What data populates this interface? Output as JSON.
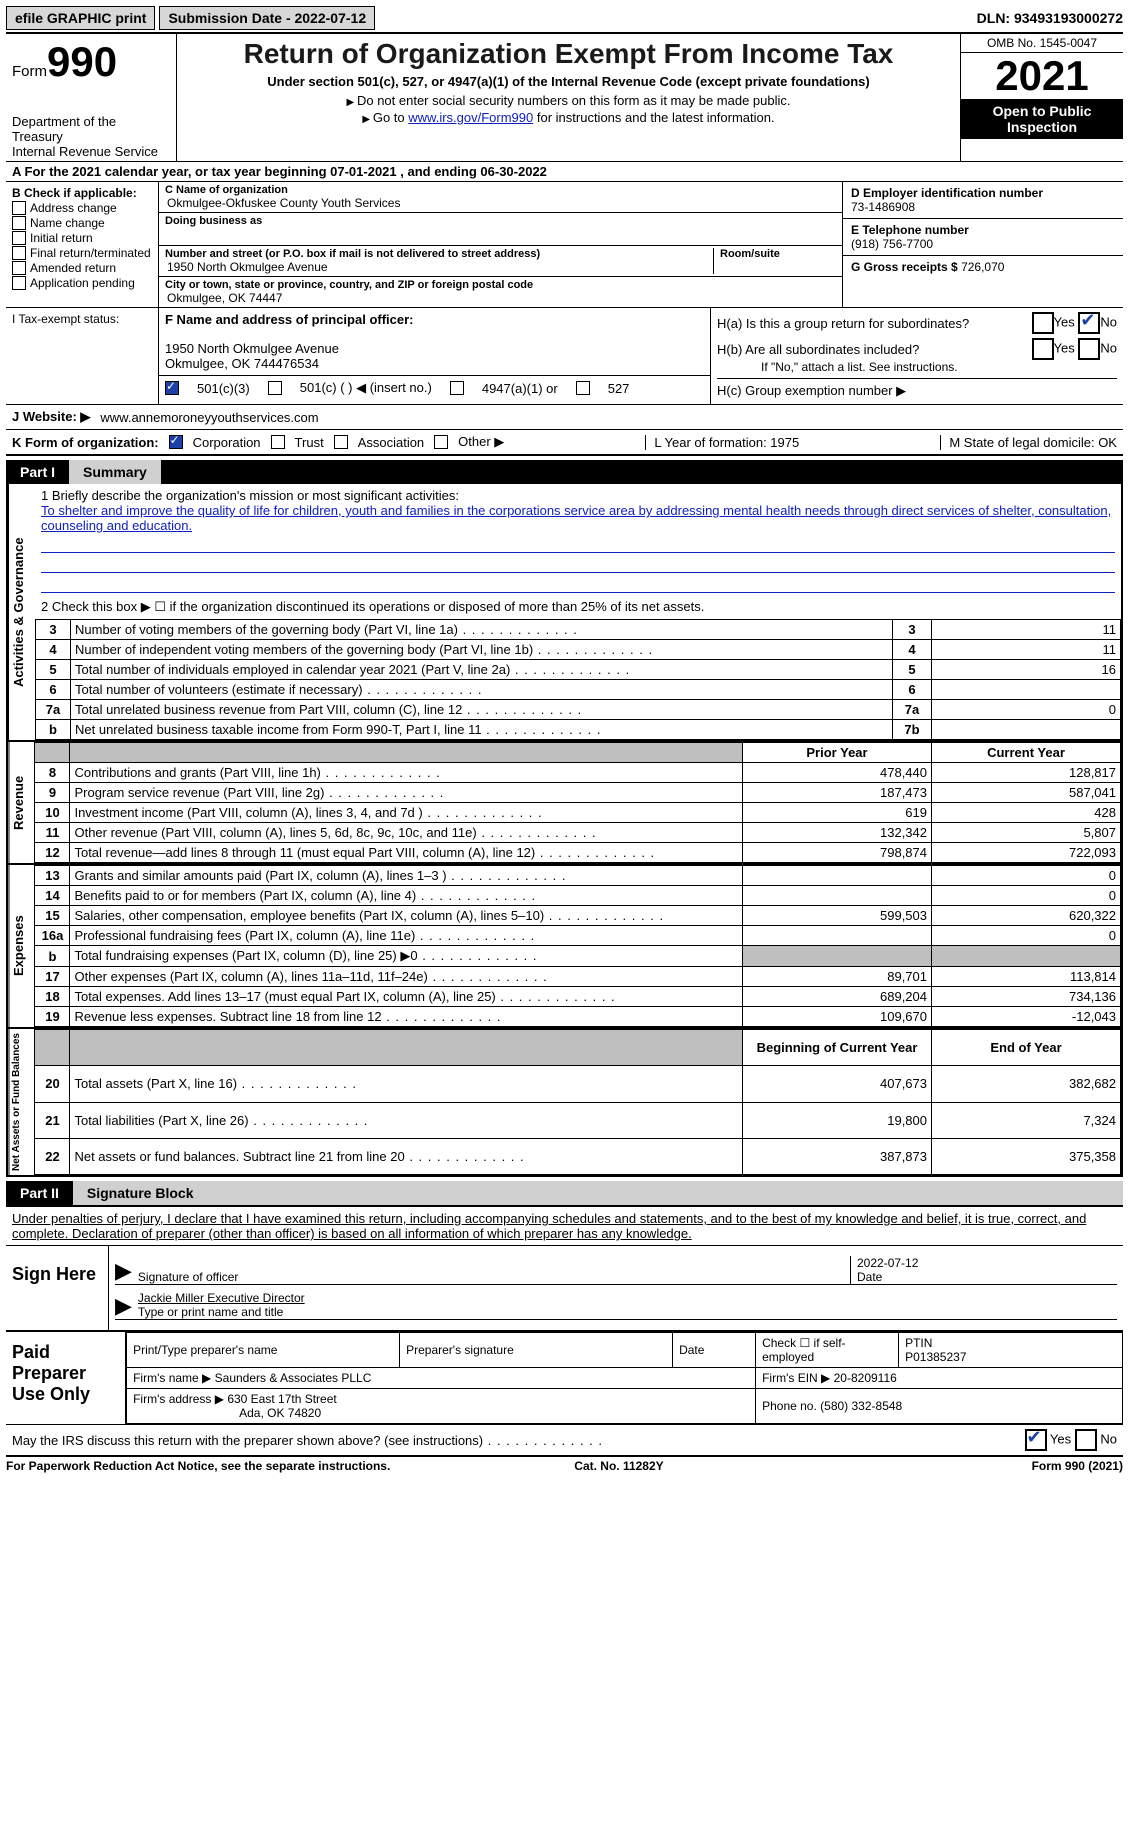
{
  "topbar": {
    "print_label": "efile GRAPHIC print",
    "submission_label": "Submission Date - 2022-07-12",
    "dln": "DLN: 93493193000272"
  },
  "header": {
    "form_prefix": "Form",
    "form_number": "990",
    "dept": "Department of the Treasury",
    "irs": "Internal Revenue Service",
    "title": "Return of Organization Exempt From Income Tax",
    "sub": "Under section 501(c), 527, or 4947(a)(1) of the Internal Revenue Code (except private foundations)",
    "note1": "Do not enter social security numbers on this form as it may be made public.",
    "note2_prefix": "Go to ",
    "link": "www.irs.gov/Form990",
    "note2_suffix": " for instructions and the latest information.",
    "omb": "OMB No. 1545-0047",
    "year": "2021",
    "open": "Open to Public Inspection"
  },
  "period": {
    "text": "A For the 2021 calendar year, or tax year beginning 07-01-2021    , and ending 06-30-2022"
  },
  "sectionB": {
    "header": "B Check if applicable:",
    "opts": [
      "Address change",
      "Name change",
      "Initial return",
      "Final return/terminated",
      "Amended return",
      "Application pending"
    ]
  },
  "sectionC": {
    "name_lab": "C Name of organization",
    "name": "Okmulgee-Okfuskee County Youth Services",
    "dba_lab": "Doing business as",
    "addr_lab": "Number and street (or P.O. box if mail is not delivered to street address)",
    "room_lab": "Room/suite",
    "addr": "1950 North Okmulgee Avenue",
    "city_lab": "City or town, state or province, country, and ZIP or foreign postal code",
    "city": "Okmulgee, OK  74447"
  },
  "sectionD": {
    "lab": "D Employer identification number",
    "val": "73-1486908"
  },
  "sectionE": {
    "lab": "E Telephone number",
    "val": "(918) 756-7700"
  },
  "sectionG": {
    "lab": "G Gross receipts $",
    "val": "726,070"
  },
  "sectionF": {
    "lab": "F Name and address of principal officer:",
    "addr1": "1950 North Okmulgee Avenue",
    "addr2": "Okmulgee, OK  744476534"
  },
  "sectionH": {
    "a": "H(a)  Is this a group return for subordinates?",
    "b": "H(b)  Are all subordinates included?",
    "bnote": "If \"No,\" attach a list. See instructions.",
    "c": "H(c)  Group exemption number ▶",
    "yes": "Yes",
    "no": "No"
  },
  "status": {
    "lab": "I   Tax-exempt status:",
    "o1": "501(c)(3)",
    "o2": "501(c) (   ) ◀ (insert no.)",
    "o3": "4947(a)(1) or",
    "o4": "527"
  },
  "website": {
    "lab": "J   Website: ▶",
    "val": "www.annemoroneyyouthservices.com"
  },
  "korg": {
    "lab": "K Form of organization:",
    "o1": "Corporation",
    "o2": "Trust",
    "o3": "Association",
    "o4": "Other ▶",
    "L": "L Year of formation: 1975",
    "M": "M State of legal domicile: OK"
  },
  "part1": {
    "num": "Part I",
    "title": "Summary"
  },
  "summary": {
    "q1_lab": "1   Briefly describe the organization's mission or most significant activities:",
    "mission": "To shelter and improve the quality of life for children, youth and families in the corporations service area by addressing mental health needs through direct services of shelter, consultation, counseling and education.",
    "q2": "2    Check this box ▶ ☐  if the organization discontinued its operations or disposed of more than 25% of its net assets.",
    "vlab_ag": "Activities & Governance",
    "vlab_rev": "Revenue",
    "vlab_exp": "Expenses",
    "vlab_na": "Net Assets or Fund Balances",
    "rows_top": [
      {
        "n": "3",
        "t": "Number of voting members of the governing body (Part VI, line 1a)",
        "b": "3",
        "v": "11"
      },
      {
        "n": "4",
        "t": "Number of independent voting members of the governing body (Part VI, line 1b)",
        "b": "4",
        "v": "11"
      },
      {
        "n": "5",
        "t": "Total number of individuals employed in calendar year 2021 (Part V, line 2a)",
        "b": "5",
        "v": "16"
      },
      {
        "n": "6",
        "t": "Total number of volunteers (estimate if necessary)",
        "b": "6",
        "v": ""
      },
      {
        "n": "7a",
        "t": "Total unrelated business revenue from Part VIII, column (C), line 12",
        "b": "7a",
        "v": "0"
      },
      {
        "n": "b",
        "t": "Net unrelated business taxable income from Form 990-T, Part I, line 11",
        "b": "7b",
        "v": ""
      }
    ],
    "col_prior": "Prior Year",
    "col_current": "Current Year",
    "rows_rev": [
      {
        "n": "8",
        "t": "Contributions and grants (Part VIII, line 1h)",
        "p": "478,440",
        "c": "128,817"
      },
      {
        "n": "9",
        "t": "Program service revenue (Part VIII, line 2g)",
        "p": "187,473",
        "c": "587,041"
      },
      {
        "n": "10",
        "t": "Investment income (Part VIII, column (A), lines 3, 4, and 7d )",
        "p": "619",
        "c": "428"
      },
      {
        "n": "11",
        "t": "Other revenue (Part VIII, column (A), lines 5, 6d, 8c, 9c, 10c, and 11e)",
        "p": "132,342",
        "c": "5,807"
      },
      {
        "n": "12",
        "t": "Total revenue—add lines 8 through 11 (must equal Part VIII, column (A), line 12)",
        "p": "798,874",
        "c": "722,093"
      }
    ],
    "rows_exp": [
      {
        "n": "13",
        "t": "Grants and similar amounts paid (Part IX, column (A), lines 1–3 )",
        "p": "",
        "c": "0"
      },
      {
        "n": "14",
        "t": "Benefits paid to or for members (Part IX, column (A), line 4)",
        "p": "",
        "c": "0"
      },
      {
        "n": "15",
        "t": "Salaries, other compensation, employee benefits (Part IX, column (A), lines 5–10)",
        "p": "599,503",
        "c": "620,322"
      },
      {
        "n": "16a",
        "t": "Professional fundraising fees (Part IX, column (A), line 11e)",
        "p": "",
        "c": "0"
      },
      {
        "n": "b",
        "t": "Total fundraising expenses (Part IX, column (D), line 25) ▶0",
        "p": "shade",
        "c": "shade"
      },
      {
        "n": "17",
        "t": "Other expenses (Part IX, column (A), lines 11a–11d, 11f–24e)",
        "p": "89,701",
        "c": "113,814"
      },
      {
        "n": "18",
        "t": "Total expenses. Add lines 13–17 (must equal Part IX, column (A), line 25)",
        "p": "689,204",
        "c": "734,136"
      },
      {
        "n": "19",
        "t": "Revenue less expenses. Subtract line 18 from line 12",
        "p": "109,670",
        "c": "-12,043"
      }
    ],
    "col_begin": "Beginning of Current Year",
    "col_end": "End of Year",
    "rows_na": [
      {
        "n": "20",
        "t": "Total assets (Part X, line 16)",
        "p": "407,673",
        "c": "382,682"
      },
      {
        "n": "21",
        "t": "Total liabilities (Part X, line 26)",
        "p": "19,800",
        "c": "7,324"
      },
      {
        "n": "22",
        "t": "Net assets or fund balances. Subtract line 21 from line 20",
        "p": "387,873",
        "c": "375,358"
      }
    ]
  },
  "part2": {
    "num": "Part II",
    "title": "Signature Block"
  },
  "sig": {
    "decl": "Under penalties of perjury, I declare that I have examined this return, including accompanying schedules and statements, and to the best of my knowledge and belief, it is true, correct, and complete. Declaration of preparer (other than officer) is based on all information of which preparer has any knowledge.",
    "sign_here": "Sign Here",
    "sig_label": "Signature of officer",
    "date_label": "Date",
    "date_val": "2022-07-12",
    "name_val": "Jackie Miller  Executive Director",
    "name_label": "Type or print name and title"
  },
  "prep": {
    "title": "Paid Preparer Use Only",
    "h1": "Print/Type preparer's name",
    "h2": "Preparer's signature",
    "h3": "Date",
    "h4a": "Check ☐ if self-employed",
    "h4b": "PTIN",
    "ptin": "P01385237",
    "firm_lab": "Firm's name    ▶",
    "firm": "Saunders & Associates PLLC",
    "ein_lab": "Firm's EIN ▶",
    "ein": "20-8209116",
    "addr_lab": "Firm's address ▶",
    "addr1": "630 East 17th Street",
    "addr2": "Ada, OK  74820",
    "phone_lab": "Phone no.",
    "phone": "(580) 332-8548"
  },
  "footer": {
    "q": "May the IRS discuss this return with the preparer shown above? (see instructions)",
    "yes": "Yes",
    "no": "No",
    "paperwork": "For Paperwork Reduction Act Notice, see the separate instructions.",
    "cat": "Cat. No. 11282Y",
    "formref": "Form 990 (2021)"
  },
  "colors": {
    "link": "#1020c0",
    "shade": "#bfbfbf"
  }
}
